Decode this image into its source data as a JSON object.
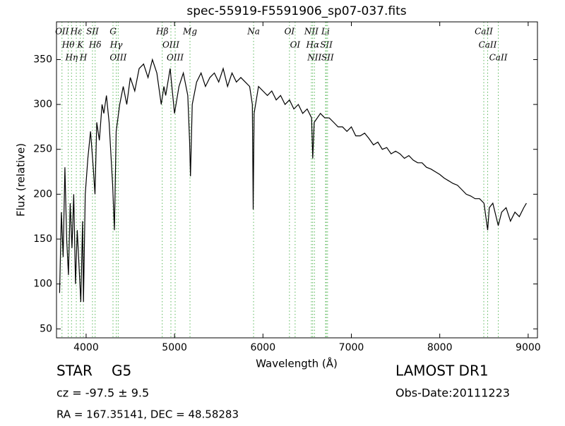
{
  "chart_data": {
    "type": "line",
    "title": "spec-55919-F5591906_sp07-037.fits",
    "x_label": "Wavelength (Å)",
    "y_label": "Flux (relative)",
    "xlim": [
      3665,
      9105
    ],
    "ylim": [
      40,
      392
    ],
    "xticks": [
      4000,
      5000,
      6000,
      7000,
      8000,
      9000
    ],
    "yticks": [
      50,
      100,
      150,
      200,
      250,
      300,
      350
    ],
    "x": [
      3700,
      3720,
      3740,
      3760,
      3780,
      3800,
      3820,
      3840,
      3860,
      3880,
      3900,
      3920,
      3940,
      3960,
      3970,
      3990,
      4020,
      4050,
      4080,
      4100,
      4120,
      4150,
      4180,
      4200,
      4230,
      4260,
      4300,
      4320,
      4340,
      4380,
      4420,
      4460,
      4500,
      4550,
      4600,
      4650,
      4700,
      4750,
      4800,
      4850,
      4880,
      4900,
      4950,
      5000,
      5050,
      5100,
      5150,
      5170,
      5180,
      5200,
      5250,
      5300,
      5350,
      5400,
      5450,
      5500,
      5550,
      5600,
      5650,
      5700,
      5750,
      5800,
      5850,
      5880,
      5890,
      5900,
      5950,
      6000,
      6050,
      6100,
      6150,
      6200,
      6250,
      6300,
      6350,
      6400,
      6450,
      6500,
      6550,
      6563,
      6580,
      6650,
      6700,
      6750,
      6800,
      6850,
      6900,
      6950,
      7000,
      7050,
      7100,
      7150,
      7200,
      7250,
      7300,
      7350,
      7400,
      7450,
      7500,
      7550,
      7600,
      7650,
      7700,
      7750,
      7800,
      7850,
      7900,
      7950,
      8000,
      8050,
      8100,
      8150,
      8200,
      8250,
      8300,
      8350,
      8400,
      8450,
      8500,
      8542,
      8560,
      8600,
      8662,
      8700,
      8750,
      8800,
      8850,
      8900,
      8950,
      8980
    ],
    "series": [
      {
        "color": "#000000",
        "values": [
          90,
          180,
          130,
          230,
          150,
          110,
          190,
          140,
          200,
          100,
          160,
          120,
          80,
          170,
          80,
          200,
          240,
          270,
          230,
          200,
          280,
          260,
          300,
          290,
          310,
          280,
          210,
          160,
          270,
          300,
          320,
          300,
          330,
          315,
          340,
          345,
          330,
          350,
          335,
          300,
          320,
          310,
          340,
          290,
          320,
          335,
          310,
          260,
          220,
          300,
          325,
          335,
          320,
          330,
          335,
          325,
          340,
          320,
          335,
          325,
          330,
          325,
          320,
          300,
          183,
          290,
          320,
          315,
          310,
          315,
          305,
          310,
          300,
          305,
          295,
          300,
          290,
          295,
          285,
          240,
          280,
          290,
          285,
          285,
          280,
          275,
          275,
          270,
          275,
          265,
          265,
          268,
          262,
          255,
          258,
          250,
          252,
          245,
          248,
          245,
          240,
          243,
          238,
          235,
          235,
          230,
          228,
          225,
          222,
          218,
          215,
          212,
          210,
          205,
          200,
          198,
          195,
          195,
          190,
          160,
          185,
          190,
          165,
          180,
          185,
          170,
          180,
          175,
          185,
          190
        ]
      }
    ],
    "marker_color": "#5cb85c",
    "spectral_lines": [
      {
        "label": "OII",
        "x": 3727
      },
      {
        "label": "Hθ",
        "x": 3798
      },
      {
        "label": "Hη",
        "x": 3835
      },
      {
        "label": "Hε",
        "x": 3889
      },
      {
        "label": "K",
        "x": 3934
      },
      {
        "label": "H",
        "x": 3969
      },
      {
        "label": "SII",
        "x": 4072
      },
      {
        "label": "Hδ",
        "x": 4102
      },
      {
        "label": "G",
        "x": 4304
      },
      {
        "label": "Hγ",
        "x": 4341
      },
      {
        "label": "OIII",
        "x": 4363
      },
      {
        "label": "Hβ",
        "x": 4861
      },
      {
        "label": "OIII",
        "x": 4959
      },
      {
        "label": "OIII",
        "x": 5007
      },
      {
        "label": "Mg",
        "x": 5175
      },
      {
        "label": "Na",
        "x": 5894
      },
      {
        "label": "OI",
        "x": 6300
      },
      {
        "label": "OI",
        "x": 6364
      },
      {
        "label": "NII",
        "x": 6548
      },
      {
        "label": "Hα",
        "x": 6563
      },
      {
        "label": "NII",
        "x": 6583
      },
      {
        "label": "Li",
        "x": 6708
      },
      {
        "label": "SII",
        "x": 6717
      },
      {
        "label": "SII",
        "x": 6731
      },
      {
        "label": "CaII",
        "x": 8498
      },
      {
        "label": "CaII",
        "x": 8542
      },
      {
        "label": "CaII",
        "x": 8662
      }
    ]
  },
  "footer": {
    "object_class": "STAR",
    "subclass": "G5",
    "redshift": "cz = -97.5 ± 9.5",
    "coordinates": "RA = 167.35141, DEC = 48.58283",
    "survey": "LAMOST DR1",
    "obs_date": "Obs-Date:20111223"
  }
}
